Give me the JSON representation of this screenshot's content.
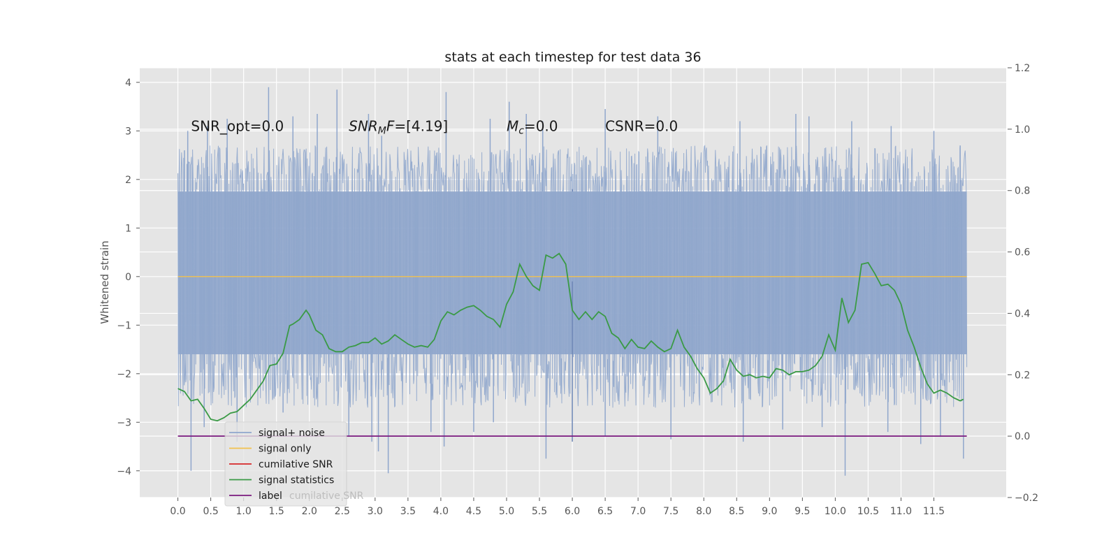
{
  "chart_data": {
    "type": "line",
    "title": "stats at each timestep for test data 36",
    "ylabel": "Whitened strain",
    "xlim": [
      -0.58,
      12.6
    ],
    "ylim": [
      -4.55,
      4.3
    ],
    "y2lim": [
      -0.2,
      1.2
    ],
    "grid": true,
    "legend_position": "bottom-left",
    "x_ticks": [
      0.0,
      0.5,
      1.0,
      1.5,
      2.0,
      2.5,
      3.0,
      3.5,
      4.0,
      4.5,
      5.0,
      5.5,
      6.0,
      6.5,
      7.0,
      7.5,
      8.0,
      8.5,
      9.0,
      9.5,
      10.0,
      10.5,
      11.0,
      11.5
    ],
    "x_tick_labels": [
      "0.0",
      "0.5",
      "1.0",
      "1.5",
      "2.0",
      "2.5",
      "3.0",
      "3.5",
      "4.0",
      "4.5",
      "5.0",
      "5.5",
      "6.0",
      "6.5",
      "7.0",
      "7.5",
      "8.0",
      "8.5",
      "9.0",
      "9.5",
      "10.0",
      "10.5",
      "11.0",
      "11.5"
    ],
    "y_ticks": [
      -4,
      -3,
      -2,
      -1,
      0,
      1,
      2,
      3,
      4
    ],
    "y_tick_labels": [
      "−4",
      "−3",
      "−2",
      "−1",
      "0",
      "1",
      "2",
      "3",
      "4"
    ],
    "y2_ticks": [
      -0.2,
      0.0,
      0.2,
      0.4,
      0.6,
      0.8,
      1.0,
      1.2
    ],
    "y2_tick_labels": [
      "−0.2",
      "0.0",
      "0.2",
      "0.4",
      "0.6",
      "0.8",
      "1.0",
      "1.2"
    ],
    "annotations": [
      {
        "x": 0.2,
        "y": 3.1,
        "parts": [
          {
            "t": "SNR_opt=0.0",
            "i": false
          }
        ]
      },
      {
        "x": 2.6,
        "y": 3.1,
        "parts": [
          {
            "t": "SNR",
            "i": true
          },
          {
            "t": "M",
            "i": true,
            "sub": true
          },
          {
            "t": "F",
            "i": true
          },
          {
            "t": "=[4.19]",
            "i": false
          }
        ]
      },
      {
        "x": 5.0,
        "y": 3.1,
        "parts": [
          {
            "t": "M",
            "i": true
          },
          {
            "t": "c",
            "i": true,
            "sub": true
          },
          {
            "t": "=0.0",
            "i": false
          }
        ]
      },
      {
        "x": 6.5,
        "y": 3.1,
        "parts": [
          {
            "t": "CSNR=0.0",
            "i": false
          }
        ]
      }
    ],
    "noise_series": {
      "name": "signal+ noise",
      "color": "#8fa6cc",
      "x_start": 0.0,
      "x_end": 12.0,
      "band_low": -1.6,
      "band_high": 1.75,
      "spikes": [
        [
          0.1,
          2.6
        ],
        [
          0.15,
          3.0
        ],
        [
          0.45,
          3.1
        ],
        [
          0.75,
          3.25
        ],
        [
          1.38,
          3.9
        ],
        [
          1.75,
          3.3
        ],
        [
          2.12,
          3.35
        ],
        [
          2.42,
          3.85
        ],
        [
          2.9,
          3.35
        ],
        [
          3.1,
          2.9
        ],
        [
          4.08,
          3.8
        ],
        [
          4.75,
          3.25
        ],
        [
          5.04,
          3.6
        ],
        [
          5.3,
          3.35
        ],
        [
          5.55,
          3.2
        ],
        [
          6.5,
          3.45
        ],
        [
          7.3,
          3.3
        ],
        [
          8.55,
          3.2
        ],
        [
          9.4,
          3.35
        ],
        [
          9.6,
          3.3
        ],
        [
          10.25,
          3.2
        ],
        [
          10.85,
          3.1
        ],
        [
          11.5,
          3.0
        ],
        [
          11.9,
          2.7
        ],
        [
          0.2,
          -4.0
        ],
        [
          0.4,
          -3.1
        ],
        [
          0.9,
          -3.4
        ],
        [
          1.6,
          -2.8
        ],
        [
          2.6,
          -3.3
        ],
        [
          2.95,
          -3.4
        ],
        [
          3.05,
          -3.6
        ],
        [
          3.2,
          -4.05
        ],
        [
          3.85,
          -3.2
        ],
        [
          4.05,
          -3.5
        ],
        [
          4.5,
          -3.2
        ],
        [
          4.8,
          -3.0
        ],
        [
          5.6,
          -3.75
        ],
        [
          6.0,
          -3.4
        ],
        [
          6.5,
          -3.3
        ],
        [
          7.5,
          -3.35
        ],
        [
          8.6,
          -3.4
        ],
        [
          9.2,
          -3.15
        ],
        [
          9.8,
          -3.1
        ],
        [
          10.15,
          -4.1
        ],
        [
          10.8,
          -3.2
        ],
        [
          11.3,
          -3.45
        ],
        [
          11.6,
          -3.3
        ],
        [
          11.95,
          -3.75
        ],
        [
          5.9,
          -1.5
        ],
        [
          6.0,
          1.8
        ],
        [
          6.0,
          -0.1
        ]
      ]
    },
    "series": [
      {
        "name": "signal only",
        "color": "#f2c14e",
        "axis": "left",
        "x": [
          0.0,
          12.0
        ],
        "y": [
          0.0,
          0.0
        ]
      },
      {
        "name": "cumilative SNR",
        "color": "#d62728",
        "axis": "right",
        "x": [],
        "y": []
      },
      {
        "name": "signal statistics",
        "color": "#3a9a45",
        "axis": "right",
        "x": [
          0.0,
          0.1,
          0.2,
          0.3,
          0.4,
          0.5,
          0.6,
          0.7,
          0.8,
          0.9,
          1.0,
          1.1,
          1.2,
          1.3,
          1.4,
          1.5,
          1.6,
          1.7,
          1.75,
          1.85,
          1.95,
          2.0,
          2.1,
          2.2,
          2.3,
          2.4,
          2.5,
          2.6,
          2.7,
          2.8,
          2.9,
          3.0,
          3.1,
          3.2,
          3.3,
          3.4,
          3.5,
          3.6,
          3.7,
          3.8,
          3.9,
          4.0,
          4.1,
          4.2,
          4.3,
          4.4,
          4.5,
          4.6,
          4.7,
          4.8,
          4.9,
          5.0,
          5.1,
          5.2,
          5.3,
          5.4,
          5.5,
          5.6,
          5.7,
          5.8,
          5.9,
          6.0,
          6.1,
          6.2,
          6.3,
          6.4,
          6.5,
          6.6,
          6.7,
          6.8,
          6.9,
          7.0,
          7.1,
          7.2,
          7.3,
          7.4,
          7.5,
          7.6,
          7.7,
          7.8,
          7.9,
          8.0,
          8.1,
          8.2,
          8.3,
          8.4,
          8.5,
          8.6,
          8.7,
          8.8,
          8.9,
          9.0,
          9.1,
          9.2,
          9.3,
          9.4,
          9.5,
          9.6,
          9.7,
          9.8,
          9.9,
          10.0,
          10.1,
          10.2,
          10.3,
          10.4,
          10.5,
          10.6,
          10.7,
          10.8,
          10.9,
          11.0,
          11.1,
          11.2,
          11.3,
          11.4,
          11.5,
          11.6,
          11.7,
          11.8,
          11.9,
          11.95
        ],
        "y": [
          0.155,
          0.145,
          0.115,
          0.12,
          0.09,
          0.055,
          0.05,
          0.06,
          0.075,
          0.08,
          0.1,
          0.12,
          0.15,
          0.18,
          0.23,
          0.235,
          0.27,
          0.36,
          0.365,
          0.38,
          0.41,
          0.395,
          0.345,
          0.33,
          0.285,
          0.275,
          0.275,
          0.29,
          0.295,
          0.305,
          0.305,
          0.32,
          0.3,
          0.31,
          0.33,
          0.315,
          0.3,
          0.29,
          0.295,
          0.29,
          0.315,
          0.375,
          0.405,
          0.395,
          0.41,
          0.42,
          0.425,
          0.41,
          0.39,
          0.38,
          0.355,
          0.43,
          0.47,
          0.56,
          0.52,
          0.49,
          0.475,
          0.59,
          0.58,
          0.595,
          0.56,
          0.41,
          0.38,
          0.405,
          0.38,
          0.405,
          0.39,
          0.335,
          0.32,
          0.285,
          0.315,
          0.29,
          0.285,
          0.31,
          0.29,
          0.275,
          0.285,
          0.345,
          0.29,
          0.26,
          0.22,
          0.19,
          0.14,
          0.155,
          0.18,
          0.25,
          0.215,
          0.195,
          0.2,
          0.19,
          0.195,
          0.19,
          0.22,
          0.215,
          0.2,
          0.21,
          0.21,
          0.215,
          0.23,
          0.26,
          0.33,
          0.28,
          0.45,
          0.37,
          0.41,
          0.56,
          0.565,
          0.53,
          0.49,
          0.495,
          0.475,
          0.43,
          0.345,
          0.29,
          0.225,
          0.17,
          0.14,
          0.15,
          0.14,
          0.125,
          0.115,
          0.12
        ]
      },
      {
        "name": "label",
        "color": "#7b1a7e",
        "axis": "right",
        "x": [
          0.0,
          12.0
        ],
        "y": [
          0.0,
          0.0
        ]
      }
    ],
    "legend": [
      {
        "label": "signal+ noise",
        "color": "#8fa6cc"
      },
      {
        "label": "signal only",
        "color": "#f2c14e"
      },
      {
        "label": "cumilative SNR",
        "color": "#d62728"
      },
      {
        "label": "signal statistics",
        "color": "#3a9a45"
      },
      {
        "label": "label",
        "color": "#7b1a7e"
      }
    ],
    "legend_ghost_text": "cumilative SNR"
  }
}
